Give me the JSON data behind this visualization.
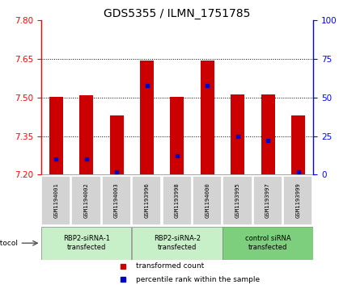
{
  "title": "GDS5355 / ILMN_1751785",
  "samples": [
    "GSM1194001",
    "GSM1194002",
    "GSM1194003",
    "GSM1193996",
    "GSM1193998",
    "GSM1194000",
    "GSM1193995",
    "GSM1193997",
    "GSM1193999"
  ],
  "transformed_counts": [
    7.504,
    7.508,
    7.43,
    7.645,
    7.502,
    7.645,
    7.513,
    7.512,
    7.432
  ],
  "percentile_ranks": [
    10,
    10,
    2,
    58,
    12,
    58,
    25,
    22,
    2
  ],
  "ylim_left": [
    7.2,
    7.8
  ],
  "ylim_right": [
    0,
    100
  ],
  "yticks_left": [
    7.2,
    7.35,
    7.5,
    7.65,
    7.8
  ],
  "yticks_right": [
    0,
    25,
    50,
    75,
    100
  ],
  "bar_color": "#cc0000",
  "dot_color": "#0000cc",
  "groups": [
    {
      "label": "RBP2-siRNA-1\ntransfected",
      "indices": [
        0,
        1,
        2
      ],
      "color": "#c8f0c8"
    },
    {
      "label": "RBP2-siRNA-2\ntransfected",
      "indices": [
        3,
        4,
        5
      ],
      "color": "#c8f0c8"
    },
    {
      "label": "control siRNA\ntransfected",
      "indices": [
        6,
        7,
        8
      ],
      "color": "#7dce7d"
    }
  ],
  "protocol_label": "protocol",
  "legend_items": [
    {
      "color": "#cc0000",
      "label": "transformed count"
    },
    {
      "color": "#0000cc",
      "label": "percentile rank within the sample"
    }
  ],
  "bg_color": "#ffffff",
  "sample_box_color": "#d3d3d3",
  "title_fontsize": 10,
  "tick_fontsize": 7.5,
  "bar_width": 0.45
}
